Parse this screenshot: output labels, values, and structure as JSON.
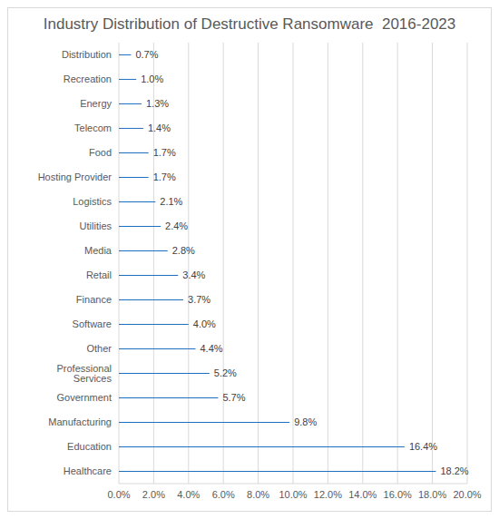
{
  "chart_data": {
    "type": "bar",
    "title": "Industry Distribution of Destructive Ransomware  2016-2023",
    "orientation": "horizontal",
    "categories": [
      "Distribution",
      "Recreation",
      "Energy",
      "Telecom",
      "Food",
      "Hosting Provider",
      "Logistics",
      "Utilities",
      "Media",
      "Retail",
      "Finance",
      "Software",
      "Other",
      "Professional Services",
      "Government",
      "Manufacturing",
      "Education",
      "Healthcare"
    ],
    "values": [
      0.7,
      1.0,
      1.3,
      1.4,
      1.7,
      1.7,
      2.1,
      2.4,
      2.8,
      3.4,
      3.7,
      4.0,
      4.4,
      5.2,
      5.7,
      9.8,
      16.4,
      18.2
    ],
    "value_labels": [
      "0.7%",
      "1.0%",
      "1.3%",
      "1.4%",
      "1.7%",
      "1.7%",
      "2.1%",
      "2.4%",
      "2.8%",
      "3.4%",
      "3.7%",
      "4.0%",
      "4.4%",
      "5.2%",
      "5.7%",
      "9.8%",
      "16.4%",
      "18.2%"
    ],
    "color": "#1f6fc1",
    "xlim": [
      0,
      20
    ],
    "xticks": [
      {
        "value": 0,
        "label": "0.0%"
      },
      {
        "value": 2,
        "label": "2.0%"
      },
      {
        "value": 4,
        "label": "4.0%"
      },
      {
        "value": 6,
        "label": "6.0%"
      },
      {
        "value": 8,
        "label": "8.0%"
      },
      {
        "value": 10,
        "label": "10.0%"
      },
      {
        "value": 12,
        "label": "12.0%"
      },
      {
        "value": 14,
        "label": "14.0%"
      },
      {
        "value": 16,
        "label": "16.0%"
      },
      {
        "value": 18,
        "label": "18.0%"
      },
      {
        "value": 20,
        "label": "20.0%"
      }
    ],
    "grid": true,
    "data_labels": true
  }
}
